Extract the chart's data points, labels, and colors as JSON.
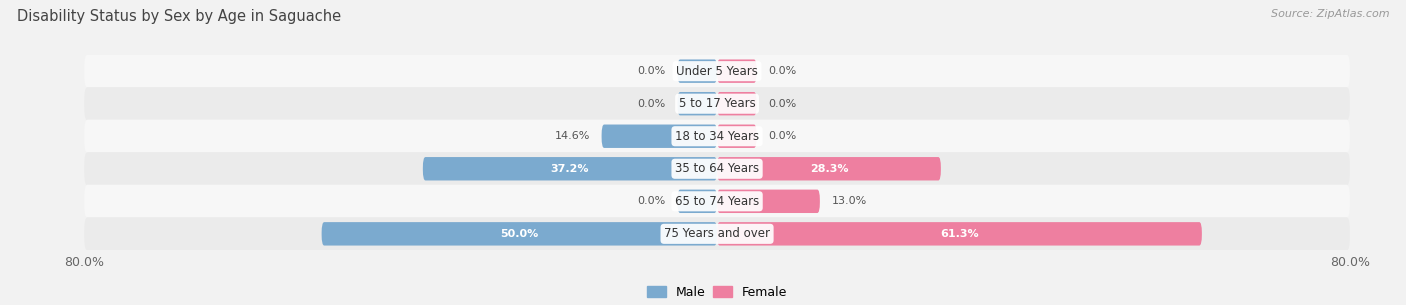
{
  "title": "Disability Status by Sex by Age in Saguache",
  "source": "Source: ZipAtlas.com",
  "categories": [
    "Under 5 Years",
    "5 to 17 Years",
    "18 to 34 Years",
    "35 to 64 Years",
    "65 to 74 Years",
    "75 Years and over"
  ],
  "male_values": [
    0.0,
    0.0,
    14.6,
    37.2,
    0.0,
    50.0
  ],
  "female_values": [
    0.0,
    0.0,
    0.0,
    28.3,
    13.0,
    61.3
  ],
  "male_color": "#7baacf",
  "female_color": "#ee7fa0",
  "male_label": "Male",
  "female_label": "Female",
  "xlim": 80.0,
  "bg_color": "#f2f2f2",
  "row_bg_even": "#f7f7f7",
  "row_bg_odd": "#ebebeb",
  "stub_size": 5.0,
  "label_dark": "#555555",
  "label_white": "#ffffff"
}
